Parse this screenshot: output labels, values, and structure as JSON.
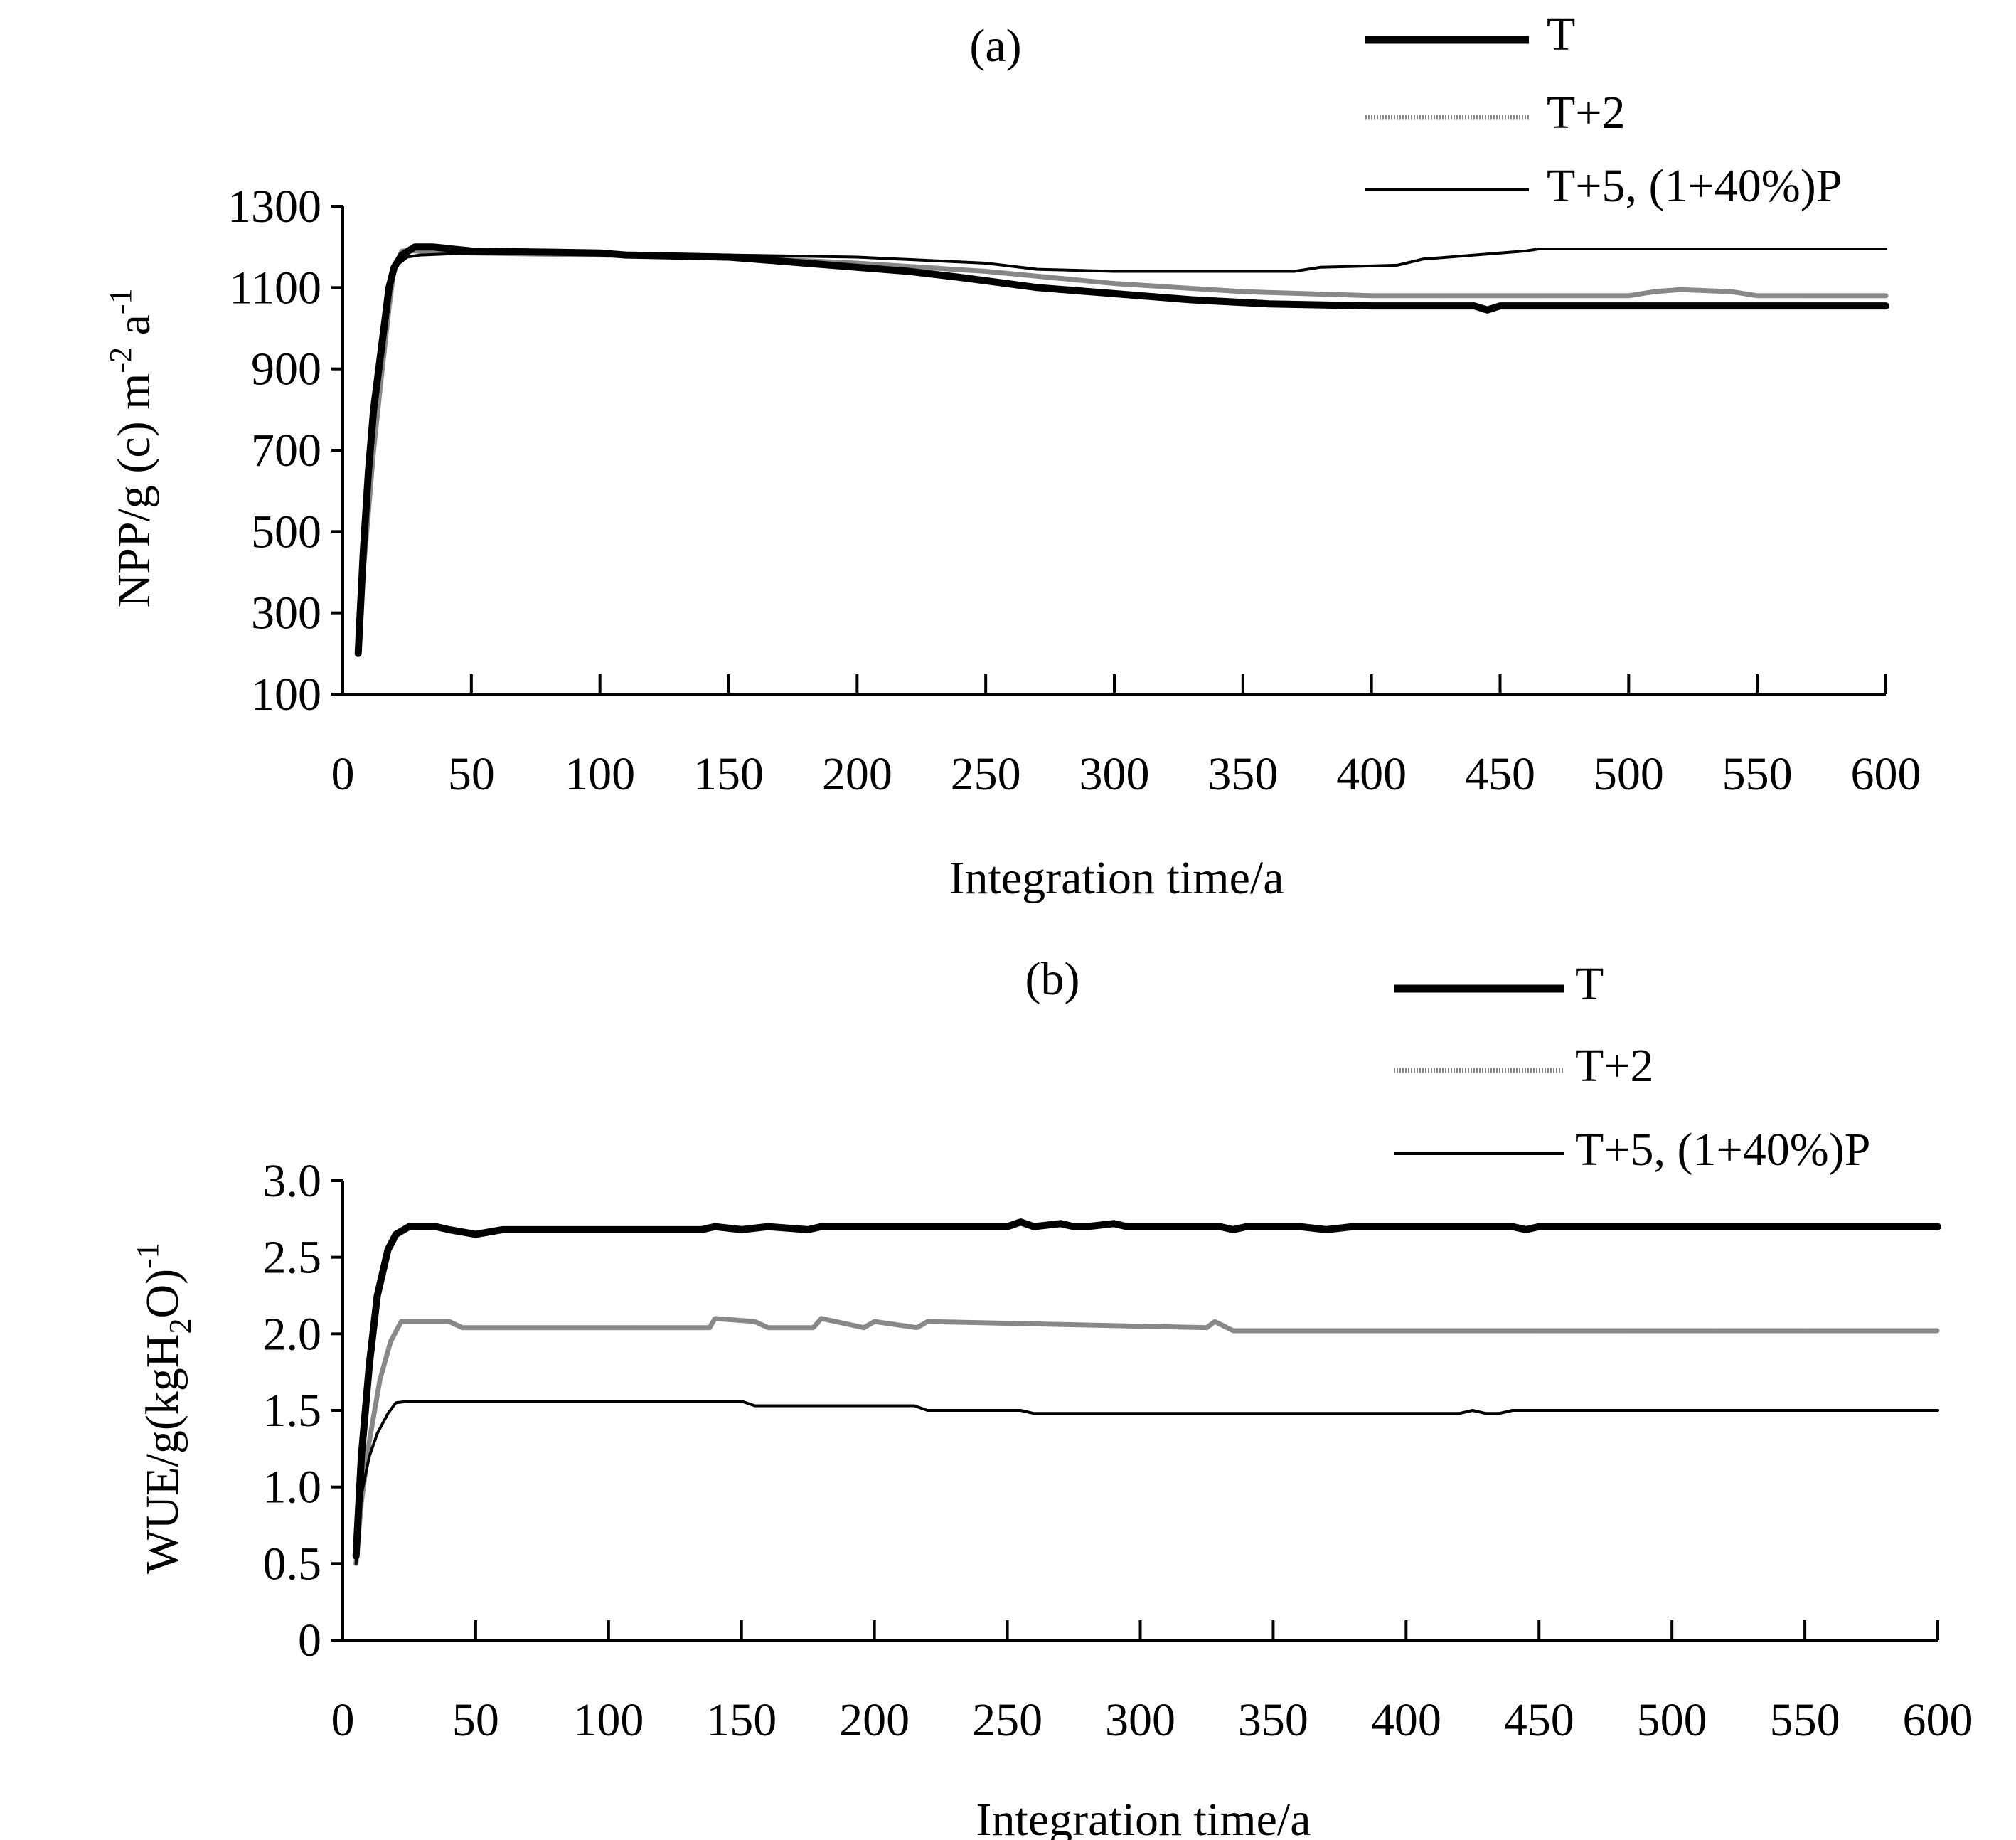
{
  "chart_data": [
    {
      "type": "line",
      "panel_label": "(a)",
      "xlabel": "Integration time/a",
      "ylabel": "NPP/g (c) m",
      "ylabel_sup1": "-2",
      "ylabel_mid": " a",
      "ylabel_sup2": "-1",
      "xlim": [
        0,
        600
      ],
      "ylim": [
        100,
        1300
      ],
      "xticks": [
        "0",
        "50",
        "100",
        "150",
        "200",
        "250",
        "300",
        "350",
        "400",
        "450",
        "500",
        "550",
        "600"
      ],
      "yticks": [
        "100",
        "300",
        "500",
        "700",
        "900",
        "1100",
        "1300"
      ],
      "grid": false,
      "legend_position": "top-right",
      "series": [
        {
          "name": "T",
          "style": "thick",
          "x": [
            6,
            8,
            10,
            12,
            15,
            18,
            20,
            23,
            28,
            35,
            50,
            100,
            110,
            150,
            160,
            180,
            200,
            220,
            240,
            270,
            300,
            330,
            360,
            400,
            440,
            445,
            450,
            500,
            600
          ],
          "y": [
            200,
            450,
            650,
            800,
            950,
            1100,
            1150,
            1180,
            1200,
            1200,
            1190,
            1185,
            1180,
            1175,
            1170,
            1160,
            1150,
            1140,
            1125,
            1100,
            1085,
            1070,
            1060,
            1055,
            1055,
            1045,
            1055,
            1055,
            1055
          ]
        },
        {
          "name": "T+2",
          "style": "dotted",
          "x": [
            6,
            8,
            10,
            12,
            15,
            18,
            20,
            23,
            28,
            50,
            100,
            150,
            200,
            250,
            300,
            350,
            400,
            450,
            500,
            510,
            520,
            540,
            550,
            600
          ],
          "y": [
            250,
            400,
            550,
            700,
            880,
            1050,
            1150,
            1190,
            1190,
            1185,
            1180,
            1175,
            1160,
            1140,
            1110,
            1090,
            1080,
            1080,
            1080,
            1090,
            1095,
            1090,
            1080,
            1080
          ]
        },
        {
          "name": "T+5, (1+40%)P",
          "style": "thin",
          "x": [
            6,
            8,
            10,
            12,
            15,
            18,
            20,
            25,
            30,
            50,
            100,
            150,
            200,
            250,
            270,
            300,
            370,
            380,
            410,
            420,
            430,
            440,
            460,
            465,
            470,
            600
          ],
          "y": [
            300,
            500,
            650,
            800,
            950,
            1100,
            1150,
            1175,
            1180,
            1185,
            1185,
            1180,
            1175,
            1160,
            1145,
            1140,
            1140,
            1150,
            1155,
            1170,
            1175,
            1180,
            1190,
            1195,
            1195,
            1195
          ]
        }
      ]
    },
    {
      "type": "line",
      "panel_label": "(b)",
      "xlabel": "Integration time/a",
      "ylabel": "WUE/g(kgH",
      "ylabel_sub": "2",
      "ylabel_end": "O)",
      "ylabel_sup": "-1",
      "xlim": [
        0,
        600
      ],
      "ylim": [
        0,
        3.0
      ],
      "xticks": [
        "0",
        "50",
        "100",
        "150",
        "200",
        "250",
        "300",
        "350",
        "400",
        "450",
        "500",
        "550",
        "600"
      ],
      "yticks": [
        "0",
        "0.5",
        "1.0",
        "1.5",
        "2.0",
        "2.5",
        "3.0"
      ],
      "grid": false,
      "legend_position": "top-right",
      "series": [
        {
          "name": "T",
          "style": "thick",
          "x": [
            5,
            7,
            10,
            13,
            17,
            20,
            25,
            35,
            40,
            50,
            60,
            100,
            135,
            140,
            150,
            160,
            175,
            180,
            250,
            255,
            260,
            270,
            275,
            280,
            290,
            295,
            300,
            330,
            335,
            340,
            360,
            370,
            380,
            440,
            445,
            450,
            600
          ],
          "y": [
            0.55,
            1.2,
            1.8,
            2.25,
            2.55,
            2.65,
            2.7,
            2.7,
            2.68,
            2.65,
            2.68,
            2.68,
            2.68,
            2.7,
            2.68,
            2.7,
            2.68,
            2.7,
            2.7,
            2.73,
            2.7,
            2.72,
            2.7,
            2.7,
            2.72,
            2.7,
            2.7,
            2.7,
            2.68,
            2.7,
            2.7,
            2.68,
            2.7,
            2.7,
            2.68,
            2.7,
            2.7
          ]
        },
        {
          "name": "T+2",
          "style": "dotted",
          "x": [
            5,
            7,
            10,
            14,
            18,
            22,
            25,
            40,
            45,
            100,
            138,
            140,
            155,
            160,
            177,
            180,
            196,
            200,
            216,
            220,
            325,
            328,
            335,
            600
          ],
          "y": [
            0.5,
            0.9,
            1.3,
            1.7,
            1.95,
            2.08,
            2.08,
            2.08,
            2.04,
            2.04,
            2.04,
            2.1,
            2.08,
            2.04,
            2.04,
            2.1,
            2.04,
            2.08,
            2.04,
            2.08,
            2.04,
            2.08,
            2.02,
            2.02
          ]
        },
        {
          "name": "T+5, (1+40%)P",
          "style": "thin",
          "x": [
            5,
            7,
            10,
            13,
            17,
            20,
            25,
            150,
            155,
            215,
            220,
            255,
            260,
            420,
            425,
            430,
            435,
            440,
            600
          ],
          "y": [
            0.5,
            0.95,
            1.2,
            1.35,
            1.48,
            1.55,
            1.56,
            1.56,
            1.53,
            1.53,
            1.5,
            1.5,
            1.48,
            1.48,
            1.5,
            1.48,
            1.48,
            1.5,
            1.5
          ]
        }
      ]
    }
  ]
}
